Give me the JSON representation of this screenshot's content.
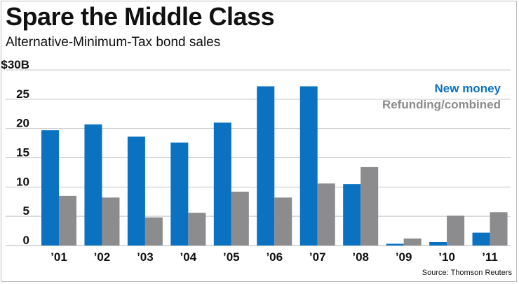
{
  "title": "Spare the Middle Class",
  "subtitle": "Alternative-Minimum-Tax bond sales",
  "source": "Source: Thomson Reuters",
  "colors": {
    "new_money": "#0a72c0",
    "refunding": "#8c8c8e",
    "grid": "#c4c4c4"
  },
  "chart_data": {
    "type": "bar",
    "categories": [
      "’01",
      "’02",
      "’03",
      "’04",
      "’05",
      "’06",
      "’07",
      "’08",
      "’09",
      "’10",
      "’11"
    ],
    "series": [
      {
        "name": "New money",
        "values": [
          19.7,
          20.7,
          18.6,
          17.6,
          21.0,
          27.2,
          27.2,
          10.5,
          0.3,
          0.6,
          2.2
        ]
      },
      {
        "name": "Refunding/combined",
        "values": [
          8.5,
          8.2,
          4.8,
          5.6,
          9.2,
          8.2,
          10.6,
          13.4,
          1.2,
          5.1,
          5.7
        ]
      }
    ],
    "ylim": [
      0,
      30
    ],
    "yticks": [
      0,
      5,
      10,
      15,
      20,
      25,
      30
    ],
    "ytick_labels": [
      "0",
      "5",
      "10",
      "15",
      "20",
      "25",
      "$30B"
    ],
    "grid": true,
    "legend_position": "top-right"
  }
}
